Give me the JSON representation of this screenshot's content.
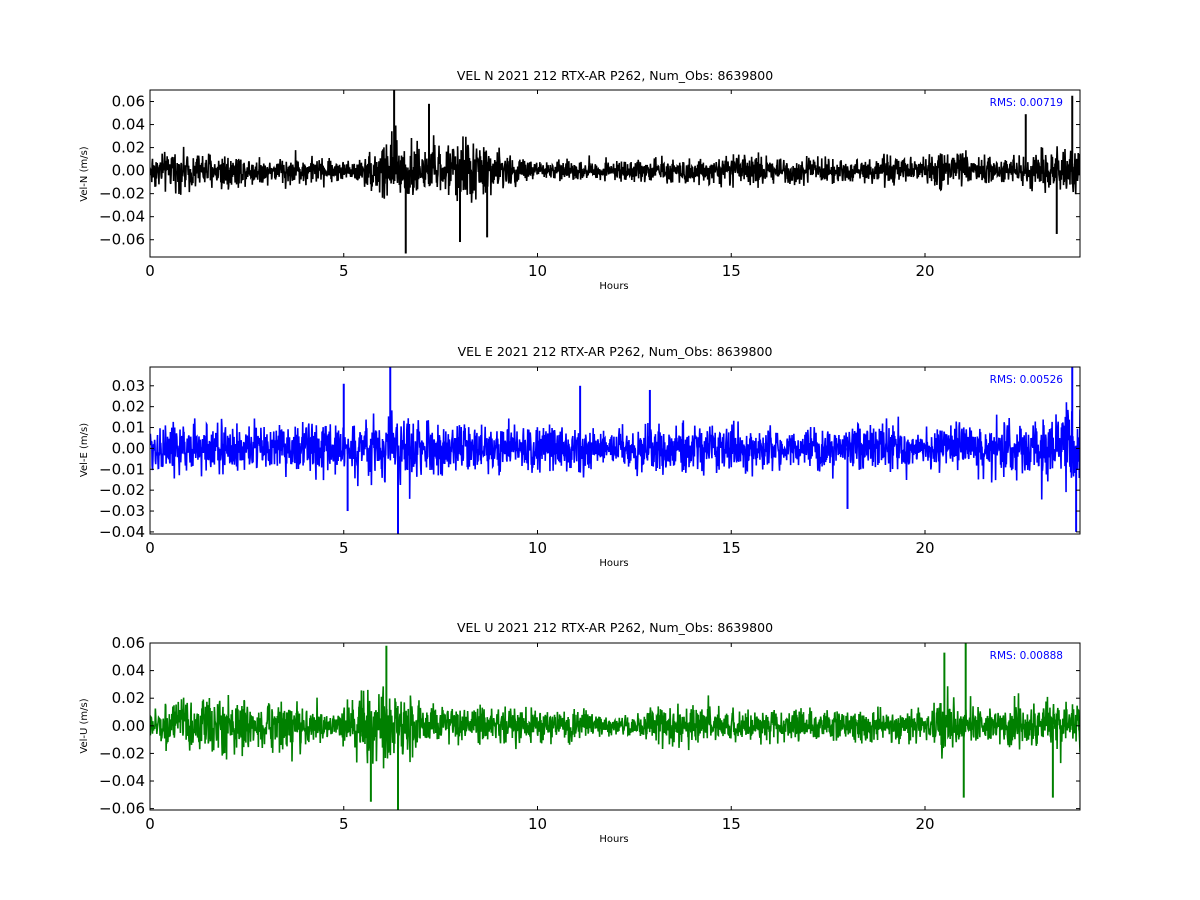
{
  "chart_data": [
    {
      "type": "line",
      "title": "VEL N 2021 212 RTX-AR  P262, Num_Obs: 8639800",
      "xlabel": "Hours",
      "ylabel": "Vel-N (m/s)",
      "xlim": [
        0,
        24
      ],
      "ylim": [
        -0.075,
        0.07
      ],
      "xticks": [
        0,
        5,
        10,
        15,
        20
      ],
      "xtick_labels": [
        "0",
        "5",
        "10",
        "15",
        "20"
      ],
      "yticks": [
        -0.06,
        -0.04,
        -0.02,
        0.0,
        0.02,
        0.04,
        0.06
      ],
      "ytick_labels": [
        "−0.06",
        "−0.04",
        "−0.02",
        "0.00",
        "0.02",
        "0.04",
        "0.06"
      ],
      "color": "#000000",
      "grid": false,
      "annotation": "RMS:  0.00719",
      "series": [
        {
          "envelope_hours": [
            0,
            0.5,
            1,
            1.5,
            2,
            2.5,
            3,
            3.5,
            4,
            4.5,
            5,
            5.5,
            5.8,
            6,
            6.2,
            6.5,
            6.8,
            7,
            7.5,
            8,
            8.2,
            8.5,
            9,
            9.5,
            10,
            11,
            12,
            13,
            14,
            15,
            16,
            17,
            18,
            19,
            20,
            20.4,
            20.8,
            21.2,
            22,
            22.5,
            23,
            23.5,
            24
          ],
          "envelope_amplitude": [
            0.028,
            0.026,
            0.027,
            0.028,
            0.03,
            0.02,
            0.018,
            0.02,
            0.02,
            0.018,
            0.015,
            0.018,
            0.035,
            0.05,
            0.052,
            0.055,
            0.045,
            0.03,
            0.035,
            0.045,
            0.05,
            0.04,
            0.03,
            0.02,
            0.015,
            0.014,
            0.013,
            0.017,
            0.018,
            0.02,
            0.024,
            0.018,
            0.017,
            0.02,
            0.018,
            0.028,
            0.034,
            0.02,
            0.018,
            0.022,
            0.025,
            0.03,
            0.035
          ],
          "spikes": [
            {
              "hour": 6.3,
              "value": 0.07
            },
            {
              "hour": 6.6,
              "value": -0.072
            },
            {
              "hour": 7.2,
              "value": 0.058
            },
            {
              "hour": 8.0,
              "value": -0.062
            },
            {
              "hour": 8.7,
              "value": -0.058
            },
            {
              "hour": 22.6,
              "value": 0.049
            },
            {
              "hour": 23.4,
              "value": -0.055
            },
            {
              "hour": 23.8,
              "value": 0.065
            }
          ]
        }
      ]
    },
    {
      "type": "line",
      "title": "VEL E 2021 212 RTX-AR  P262, Num_Obs: 8639800",
      "xlabel": "Hours",
      "ylabel": "Vel-E (m/s)",
      "xlim": [
        0,
        24
      ],
      "ylim": [
        -0.041,
        0.039
      ],
      "xticks": [
        0,
        5,
        10,
        15,
        20
      ],
      "xtick_labels": [
        "0",
        "5",
        "10",
        "15",
        "20"
      ],
      "yticks": [
        -0.04,
        -0.03,
        -0.02,
        -0.01,
        0.0,
        0.01,
        0.02,
        0.03
      ],
      "ytick_labels": [
        "−0.04",
        "−0.03",
        "−0.02",
        "−0.01",
        "0.00",
        "0.01",
        "0.02",
        "0.03"
      ],
      "color": "#0000ff",
      "grid": false,
      "annotation": "RMS:  0.00526",
      "series": [
        {
          "envelope_hours": [
            0,
            1,
            2,
            3,
            4,
            5,
            5.5,
            6,
            6.5,
            7,
            8,
            9,
            10,
            11,
            12,
            13,
            14,
            15,
            16,
            17,
            18,
            19,
            20,
            20.5,
            21,
            22,
            23,
            23.5,
            24
          ],
          "envelope_amplitude": [
            0.02,
            0.021,
            0.022,
            0.019,
            0.019,
            0.02,
            0.021,
            0.027,
            0.026,
            0.021,
            0.019,
            0.019,
            0.02,
            0.017,
            0.014,
            0.021,
            0.018,
            0.02,
            0.017,
            0.017,
            0.018,
            0.019,
            0.012,
            0.018,
            0.017,
            0.023,
            0.025,
            0.03,
            0.034
          ],
          "spikes": [
            {
              "hour": 6.2,
              "value": 0.039
            },
            {
              "hour": 6.4,
              "value": -0.041
            },
            {
              "hour": 5.0,
              "value": 0.031
            },
            {
              "hour": 5.1,
              "value": -0.03
            },
            {
              "hour": 11.1,
              "value": 0.03
            },
            {
              "hour": 12.9,
              "value": 0.028
            },
            {
              "hour": 18.0,
              "value": -0.029
            },
            {
              "hour": 23.8,
              "value": 0.039
            },
            {
              "hour": 23.9,
              "value": -0.04
            }
          ]
        }
      ]
    },
    {
      "type": "line",
      "title": "VEL U 2021 212 RTX-AR  P262, Num_Obs: 8639800",
      "xlabel": "Hours",
      "ylabel": "Vel-U (m/s)",
      "xlim": [
        0,
        24
      ],
      "ylim": [
        -0.061,
        0.06
      ],
      "xticks": [
        0,
        5,
        10,
        15,
        20
      ],
      "xtick_labels": [
        "0",
        "5",
        "10",
        "15",
        "20"
      ],
      "yticks": [
        -0.06,
        -0.04,
        -0.02,
        0.0,
        0.02,
        0.04,
        0.06
      ],
      "ytick_labels": [
        "−0.06",
        "−0.04",
        "−0.02",
        "0.00",
        "0.02",
        "0.04",
        "0.06"
      ],
      "color": "#008000",
      "grid": false,
      "annotation": "RMS:  0.00888",
      "series": [
        {
          "envelope_hours": [
            0,
            0.5,
            1,
            1.5,
            2,
            2.5,
            3,
            3.5,
            4,
            4.5,
            4.8,
            5,
            5.5,
            6,
            6.5,
            7,
            7.5,
            8,
            9,
            10,
            11,
            12,
            12.5,
            13,
            14,
            15,
            16,
            17,
            18,
            19,
            20,
            20.5,
            21,
            22,
            23,
            24
          ],
          "envelope_amplitude": [
            0.02,
            0.026,
            0.03,
            0.035,
            0.034,
            0.03,
            0.025,
            0.034,
            0.025,
            0.015,
            0.01,
            0.025,
            0.045,
            0.048,
            0.045,
            0.025,
            0.025,
            0.022,
            0.022,
            0.021,
            0.02,
            0.015,
            0.012,
            0.025,
            0.026,
            0.02,
            0.02,
            0.02,
            0.022,
            0.02,
            0.015,
            0.04,
            0.02,
            0.025,
            0.03,
            0.025
          ],
          "spikes": [
            {
              "hour": 6.1,
              "value": 0.058
            },
            {
              "hour": 6.4,
              "value": -0.061
            },
            {
              "hour": 5.7,
              "value": -0.055
            },
            {
              "hour": 20.5,
              "value": 0.053
            },
            {
              "hour": 21.05,
              "value": 0.06
            },
            {
              "hour": 21.0,
              "value": -0.052
            },
            {
              "hour": 23.3,
              "value": -0.052
            }
          ]
        }
      ]
    }
  ]
}
